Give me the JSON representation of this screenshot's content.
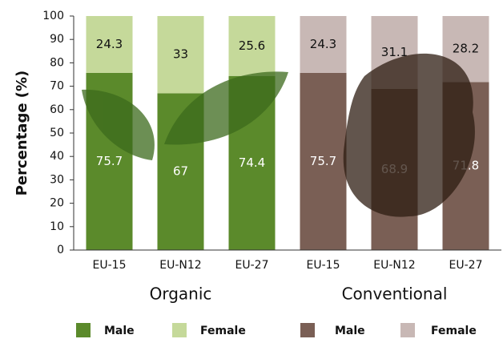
{
  "chart_data": {
    "type": "stacked-bar",
    "ylabel": "Percentage (%)",
    "ylim": [
      0,
      100
    ],
    "yticks": [
      0,
      10,
      20,
      30,
      40,
      50,
      60,
      70,
      80,
      90,
      100
    ],
    "groups": [
      {
        "name": "Organic",
        "categories": [
          "EU-15",
          "EU-N12",
          "EU-27"
        ],
        "series": [
          {
            "name": "Male",
            "color": "#5b8a2b",
            "values": [
              75.7,
              67,
              74.4
            ]
          },
          {
            "name": "Female",
            "color": "#c5d99a",
            "values": [
              24.3,
              33,
              25.6
            ]
          }
        ]
      },
      {
        "name": "Conventional",
        "categories": [
          "EU-15",
          "EU-N12",
          "EU-27"
        ],
        "series": [
          {
            "name": "Male",
            "color": "#7a5f55",
            "values": [
              75.7,
              68.9,
              71.8
            ]
          },
          {
            "name": "Female",
            "color": "#c8b8b5",
            "values": [
              24.3,
              31.1,
              28.2
            ]
          }
        ]
      }
    ]
  }
}
